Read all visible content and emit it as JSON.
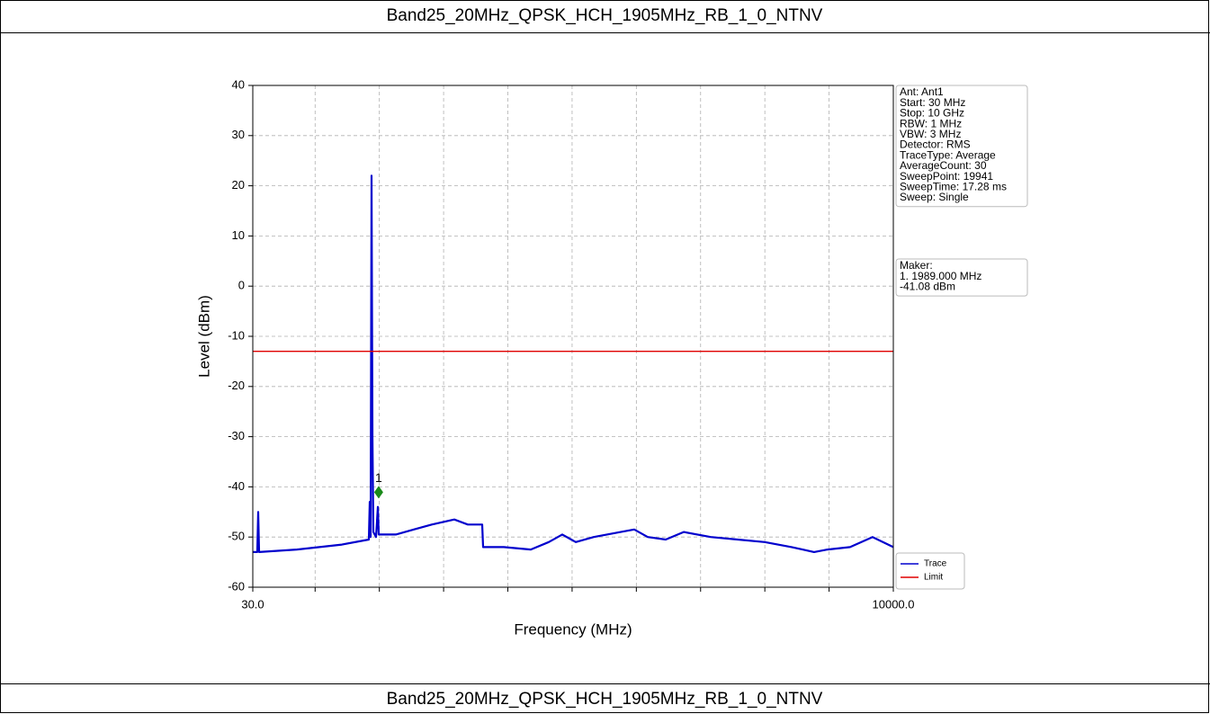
{
  "header": {
    "title": "Band25_20MHz_QPSK_HCH_1905MHz_RB_1_0_NTNV"
  },
  "chart_data": {
    "type": "line",
    "xlabel": "Frequency (MHz)",
    "ylabel": "Level (dBm)",
    "xlim": [
      30,
      10000
    ],
    "ylim": [
      -60,
      40
    ],
    "xticks": [
      {
        "value": 30,
        "label": "30.0"
      },
      {
        "value": 10000,
        "label": "10000.0"
      }
    ],
    "xgrid_ticks": [
      1000,
      2000,
      3000,
      4000,
      5000,
      6000,
      7000,
      8000,
      9000
    ],
    "yticks": [
      -60,
      -50,
      -40,
      -30,
      -20,
      -10,
      0,
      10,
      20,
      30,
      40
    ],
    "grid": true,
    "series": [
      {
        "name": "Trace",
        "color": "#0000cd",
        "x": [
          30,
          100,
          114,
          128,
          716,
          1416,
          1836,
          1850,
          1864,
          1878,
          1892,
          1906,
          1948,
          1976,
          1990,
          2256,
          2537,
          2817,
          3167,
          3377,
          3601,
          3615,
          3937,
          4357,
          4637,
          4847,
          5057,
          5337,
          5757,
          5967,
          6177,
          6457,
          6737,
          7157,
          7577,
          7997,
          8417,
          8767,
          8977,
          9327,
          9677,
          10000
        ],
        "values": [
          -53,
          -53,
          -45,
          -53,
          -52.5,
          -51.5,
          -50.5,
          -43,
          -50,
          22,
          -30,
          -49,
          -50,
          -44,
          -49.5,
          -49.5,
          -48.5,
          -47.5,
          -46.5,
          -47.5,
          -47.5,
          -52,
          -52,
          -52.5,
          -51,
          -49.5,
          -51,
          -50,
          -49,
          -48.5,
          -50,
          -50.5,
          -49,
          -50,
          -50.5,
          -51,
          -52,
          -53,
          -52.5,
          -52,
          -50,
          -52
        ]
      },
      {
        "name": "Limit",
        "color": "#e00000",
        "x": [
          30,
          10000
        ],
        "values": [
          -13,
          -13
        ]
      }
    ],
    "markers": [
      {
        "label": "1",
        "x": 1989,
        "y": -41.08,
        "color": "#1a8a1a"
      }
    ],
    "info_box": [
      "Ant: Ant1",
      "Start: 30 MHz",
      "Stop: 10 GHz",
      "RBW: 1 MHz",
      "VBW: 3 MHz",
      "Detector: RMS",
      "TraceType: Average",
      "AverageCount: 30",
      "SweepPoint: 19941",
      "SweepTime: 17.28 ms",
      "Sweep: Single"
    ],
    "marker_box": [
      "Maker:",
      "1. 1989.000 MHz",
      "   -41.08 dBm"
    ]
  },
  "footer": {
    "caption": "Band25_20MHz_QPSK_HCH_1905MHz_RB_1_0_NTNV"
  }
}
